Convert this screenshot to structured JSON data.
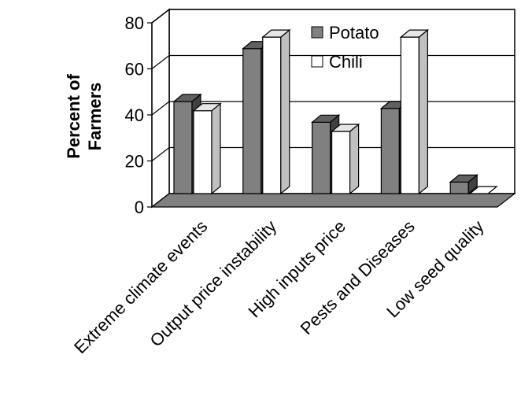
{
  "chart_data": {
    "type": "bar",
    "title": "",
    "xlabel": "",
    "ylabel_lines": [
      "Percent of",
      "Farmers"
    ],
    "ylim": [
      0,
      80
    ],
    "yticks": [
      0,
      20,
      40,
      60,
      80
    ],
    "grid": true,
    "three_d": true,
    "legend_position": "top-right",
    "categories": [
      "Extreme climate events",
      "Output price instability",
      "High inputs price",
      "Pests and Diseases",
      "Low seed quality"
    ],
    "series": [
      {
        "name": "Potato",
        "values": [
          40,
          63,
          31,
          37,
          5
        ],
        "color": "#808080"
      },
      {
        "name": "Chili",
        "values": [
          36,
          68,
          27,
          68,
          0
        ],
        "color": "#ffffff"
      }
    ]
  }
}
